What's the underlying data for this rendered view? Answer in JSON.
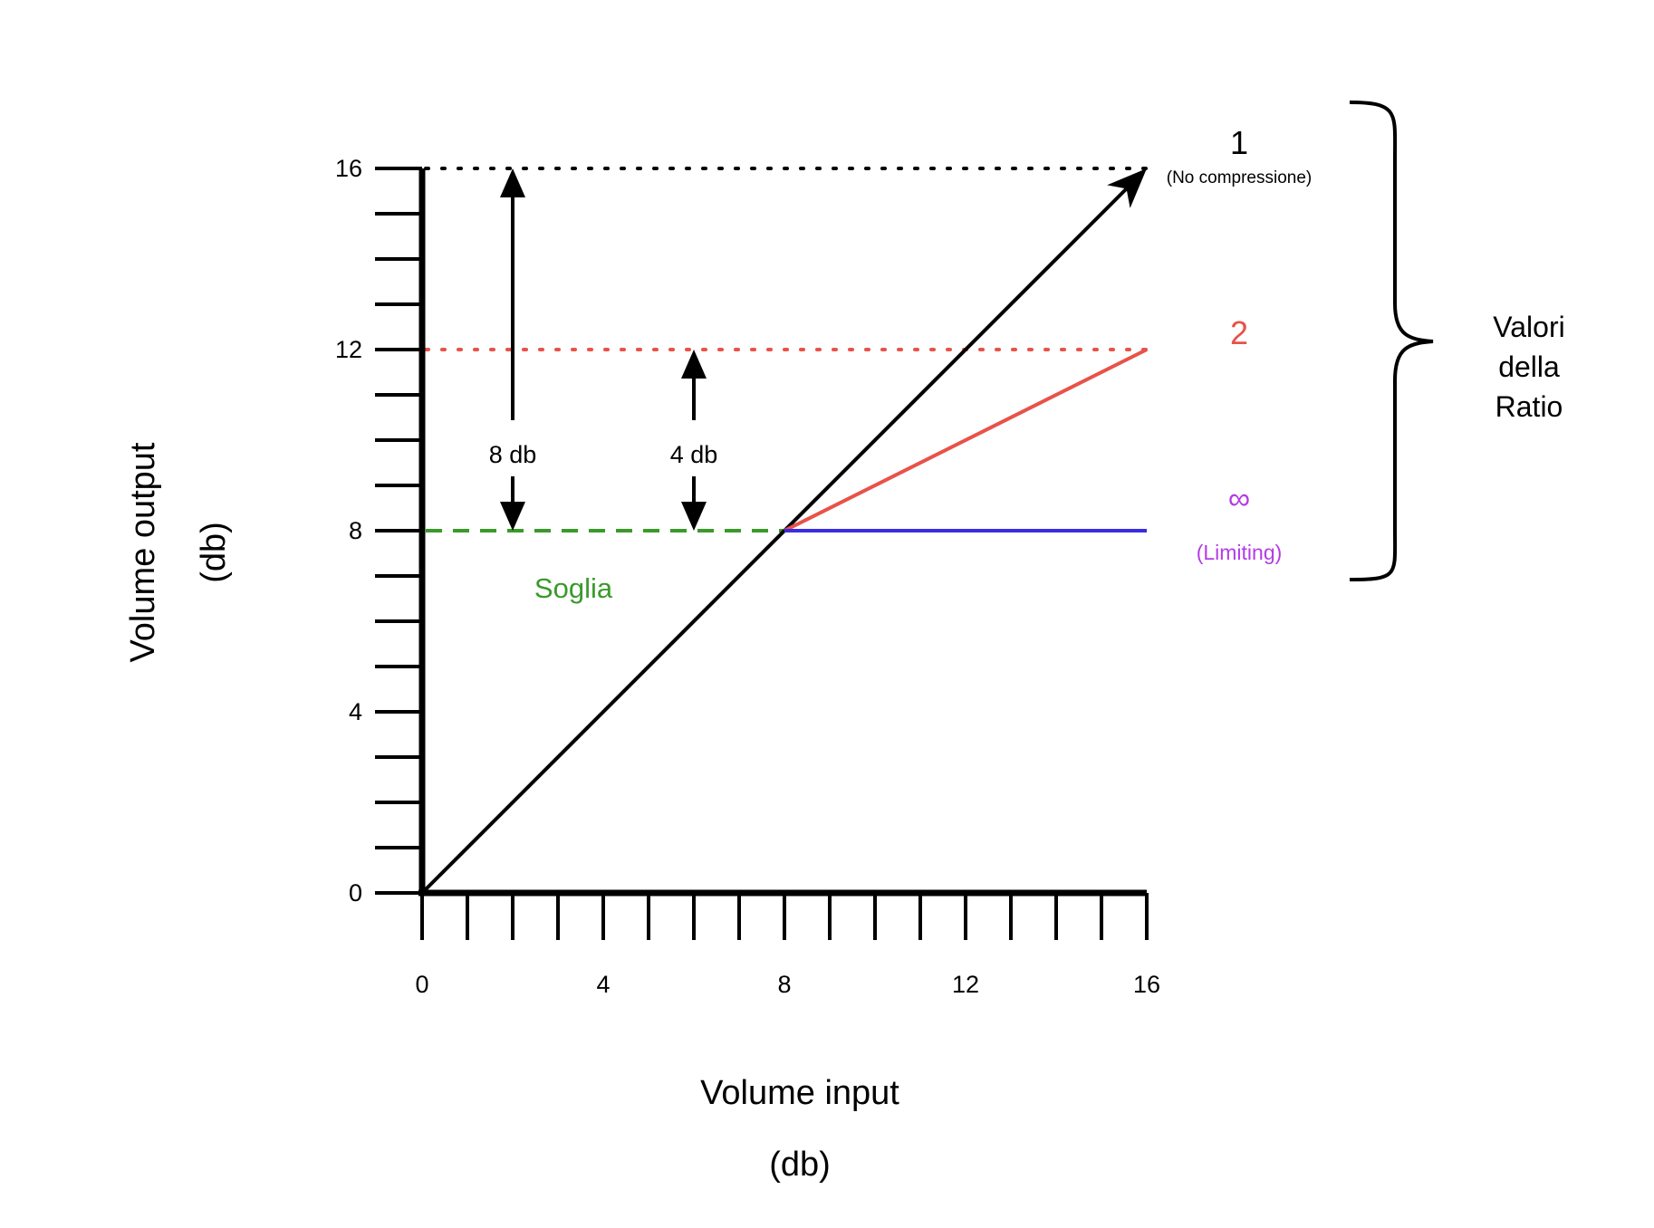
{
  "chart_data": {
    "type": "line",
    "x_axis": {
      "label": "Volume input",
      "unit_label": "(db)",
      "range": [
        0,
        16
      ],
      "tick_labels": [
        "0",
        "4",
        "8",
        "12",
        "16"
      ],
      "tick_values": [
        0,
        4,
        8,
        12,
        16
      ]
    },
    "y_axis": {
      "label": "Volume output",
      "unit_label": "(db)",
      "range": [
        0,
        16
      ],
      "tick_labels": [
        "0",
        "4",
        "8",
        "12",
        "16"
      ],
      "tick_values": [
        0,
        4,
        8,
        12,
        16
      ]
    },
    "minor_tick_step": 1,
    "grid": false,
    "series": [
      {
        "name": "1",
        "sublabel": "(No compressione)",
        "color": "#000000",
        "points": [
          [
            0,
            0
          ],
          [
            16,
            16
          ]
        ],
        "arrow": true
      },
      {
        "name": "2",
        "color": "#e8524a",
        "points": [
          [
            8,
            8
          ],
          [
            16,
            12
          ]
        ]
      },
      {
        "name": "∞",
        "sublabel": "(Limiting)",
        "color": "#3b2ce0",
        "label_color": "#b43ce6",
        "points": [
          [
            8,
            8
          ],
          [
            16,
            8
          ]
        ]
      }
    ],
    "reference_lines": [
      {
        "y": 16,
        "x_range": [
          0,
          16
        ],
        "style": "dotted",
        "color": "#000000"
      },
      {
        "y": 12,
        "x_range": [
          0,
          16
        ],
        "style": "dotted",
        "color": "#e8524a"
      },
      {
        "y": 8,
        "x_range": [
          0,
          8
        ],
        "style": "dashed",
        "color": "#3a9a2a",
        "label": "Soglia"
      }
    ],
    "annotations": [
      {
        "label": "8 db",
        "x": 2,
        "from": 8,
        "to": 16
      },
      {
        "label": "4 db",
        "x": 6,
        "from": 8,
        "to": 12
      }
    ],
    "brace_label_lines": [
      "Valori",
      "della",
      "Ratio"
    ]
  },
  "colors": {
    "soglia": "#3a9a2a"
  }
}
